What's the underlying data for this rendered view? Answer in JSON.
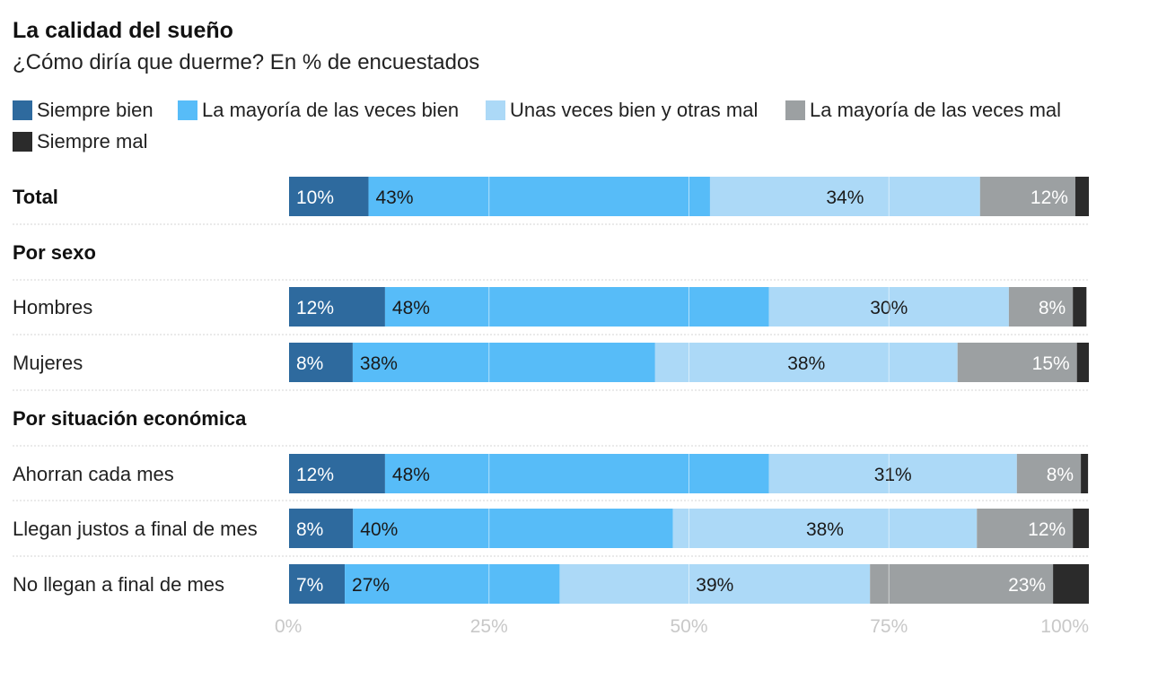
{
  "chart_data": {
    "type": "bar",
    "orientation": "horizontal",
    "stacked": true,
    "title": "La calidad del sueño",
    "subtitle": "¿Cómo diría que duerme? En % de encuestados",
    "xlim": [
      0,
      100
    ],
    "xticks": [
      0,
      25,
      50,
      75,
      100
    ],
    "xtick_labels": [
      "0%",
      "25%",
      "50%",
      "75%",
      "100%"
    ],
    "legend_position": "top",
    "series": [
      {
        "name": "Siempre bien",
        "color": "#2e6a9e",
        "label_color": "#ffffff"
      },
      {
        "name": "La mayoría de las veces bien",
        "color": "#57bcf8",
        "label_color": "#1a1a1a"
      },
      {
        "name": "Unas veces bien y otras mal",
        "color": "#acd9f7",
        "label_color": "#1a1a1a"
      },
      {
        "name": "La mayoría de las veces mal",
        "color": "#9ca0a2",
        "label_color": "#ffffff"
      },
      {
        "name": "Siempre mal",
        "color": "#2b2b2b",
        "label_color": "#ffffff"
      }
    ],
    "rows": [
      {
        "label": "Total",
        "bold": true,
        "values": [
          10,
          43,
          34,
          12,
          1.7
        ],
        "labels": [
          "10%",
          "43%",
          "34%",
          "12%",
          ""
        ]
      },
      {
        "label": "Por sexo",
        "header": true
      },
      {
        "label": "Hombres",
        "values": [
          12,
          48,
          30,
          8,
          1.7
        ],
        "labels": [
          "12%",
          "48%",
          "30%",
          "8%",
          ""
        ]
      },
      {
        "label": "Mujeres",
        "values": [
          8,
          38,
          38,
          15,
          1.5
        ],
        "labels": [
          "8%",
          "38%",
          "38%",
          "15%",
          ""
        ]
      },
      {
        "label": "Por situación económica",
        "header": true
      },
      {
        "label": "Ahorran cada mes",
        "values": [
          12,
          48,
          31,
          8,
          0.9
        ],
        "labels": [
          "12%",
          "48%",
          "31%",
          "8%",
          ""
        ]
      },
      {
        "label": "Llegan justos a final de mes",
        "values": [
          8,
          40,
          38,
          12,
          2
        ],
        "labels": [
          "8%",
          "40%",
          "38%",
          "12%",
          ""
        ]
      },
      {
        "label": "No llegan a final de mes",
        "values": [
          7,
          27,
          39,
          23,
          4.5
        ],
        "labels": [
          "7%",
          "27%",
          "39%",
          "23%",
          ""
        ]
      }
    ]
  }
}
